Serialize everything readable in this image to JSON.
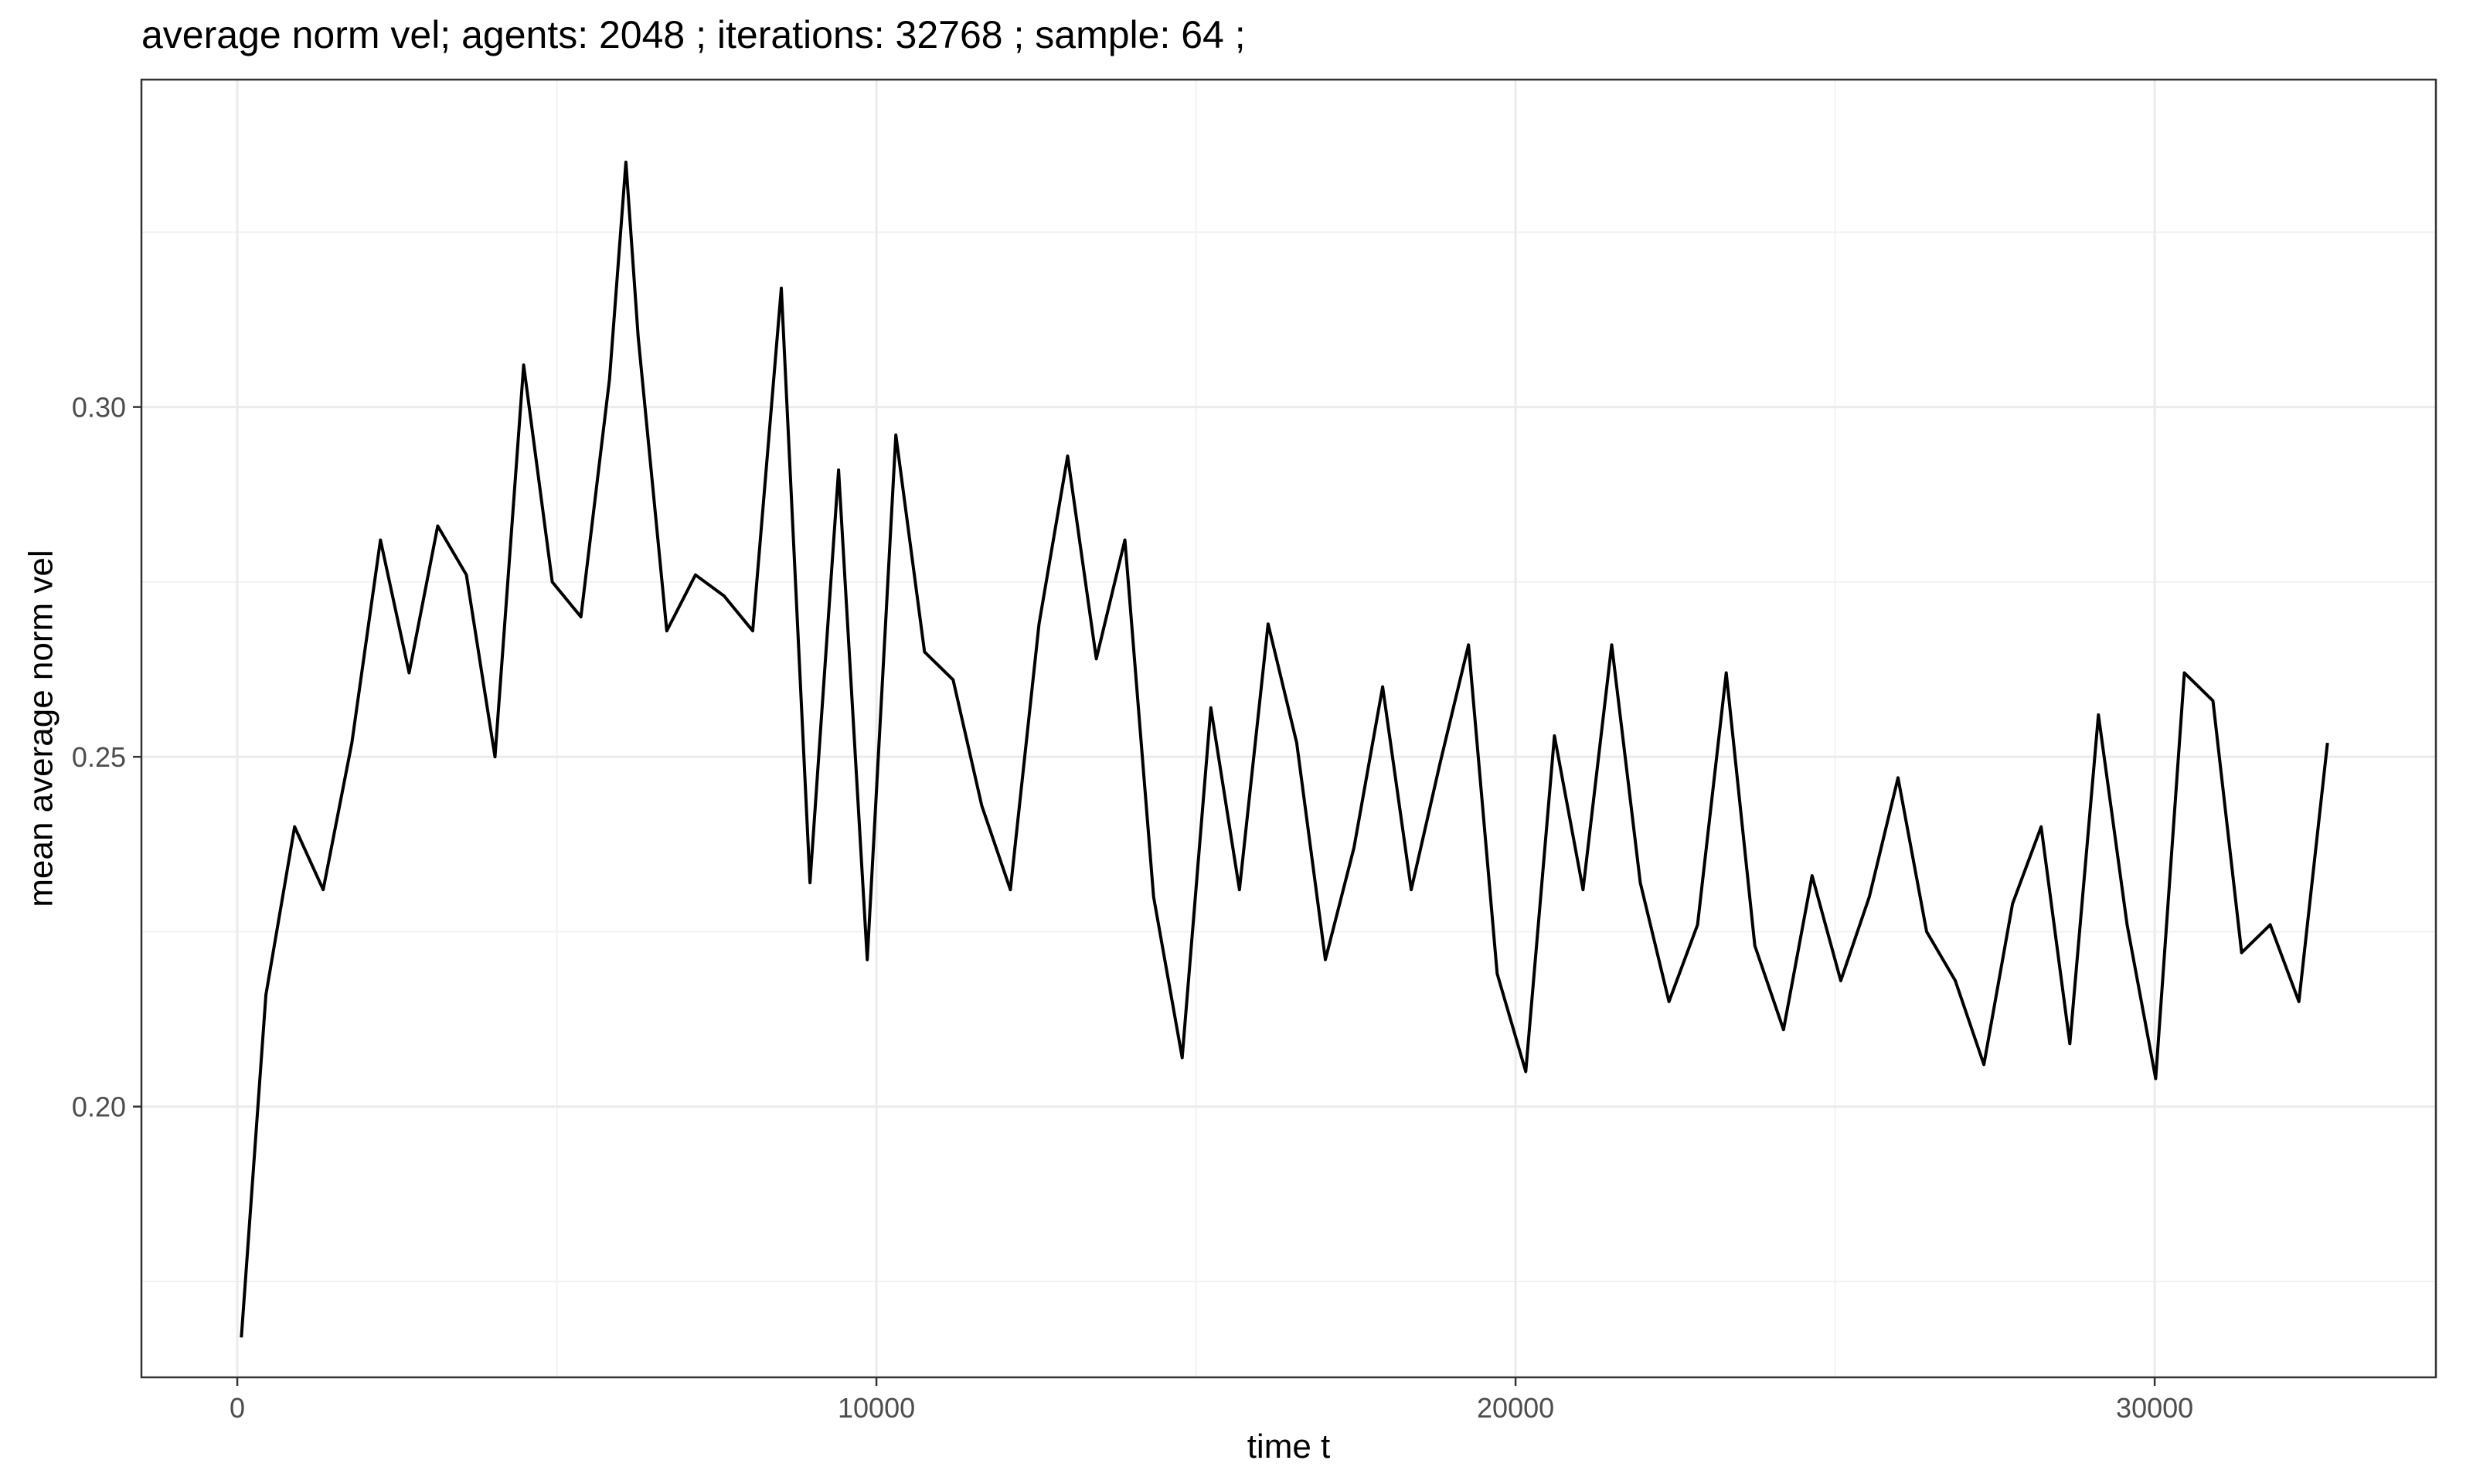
{
  "chart_data": {
    "type": "line",
    "title": "average norm vel; agents: 2048 ; iterations: 32768 ; sample: 64 ;",
    "xlabel": "time t",
    "ylabel": "mean average norm vel",
    "xlim": [
      -1500,
      34400
    ],
    "ylim": [
      0.1613,
      0.3468
    ],
    "x_ticks": [
      0,
      10000,
      20000,
      30000
    ],
    "x_tick_labels": [
      "0",
      "10000",
      "20000",
      "30000"
    ],
    "y_ticks": [
      0.2,
      0.25,
      0.3
    ],
    "y_tick_labels": [
      "0.20",
      "0.25",
      "0.30"
    ],
    "grid": true,
    "legend": "none",
    "color": "#000000",
    "series": [
      {
        "x": [
          64,
          448,
          896,
          1344,
          1792,
          2240,
          2688,
          3136,
          3584,
          4032,
          4480,
          4928,
          5376,
          5824,
          6080,
          6272,
          6720,
          7168,
          7616,
          8064,
          8512,
          8960,
          9408,
          9856,
          10304,
          10752,
          11200,
          11648,
          12096,
          12544,
          12992,
          13440,
          13888,
          14336,
          14784,
          15232,
          15680,
          16128,
          16576,
          17024,
          17472,
          17920,
          18368,
          18816,
          19264,
          19712,
          20160,
          20608,
          21056,
          21504,
          21952,
          22400,
          22848,
          23296,
          23744,
          24192,
          24640,
          25088,
          25536,
          25984,
          26432,
          26880,
          27328,
          27776,
          28224,
          28672,
          29120,
          29568,
          30016,
          30464,
          30912,
          31360,
          31808,
          32256,
          32704
        ],
        "y": [
          0.167,
          0.216,
          0.24,
          0.231,
          0.252,
          0.281,
          0.262,
          0.283,
          0.276,
          0.25,
          0.306,
          0.275,
          0.27,
          0.304,
          0.335,
          0.31,
          0.268,
          0.276,
          0.273,
          0.268,
          0.317,
          0.232,
          0.291,
          0.221,
          0.296,
          0.265,
          0.261,
          0.243,
          0.231,
          0.269,
          0.293,
          0.264,
          0.281,
          0.23,
          0.207,
          0.257,
          0.231,
          0.269,
          0.252,
          0.221,
          0.237,
          0.26,
          0.231,
          0.249,
          0.266,
          0.219,
          0.205,
          0.253,
          0.231,
          0.266,
          0.232,
          0.215,
          0.226,
          0.262,
          0.223,
          0.211,
          0.233,
          0.218,
          0.23,
          0.247,
          0.225,
          0.218,
          0.206,
          0.229,
          0.24,
          0.209,
          0.256,
          0.226,
          0.204,
          0.262,
          0.258,
          0.222,
          0.226,
          0.215,
          0.252
        ]
      }
    ]
  }
}
